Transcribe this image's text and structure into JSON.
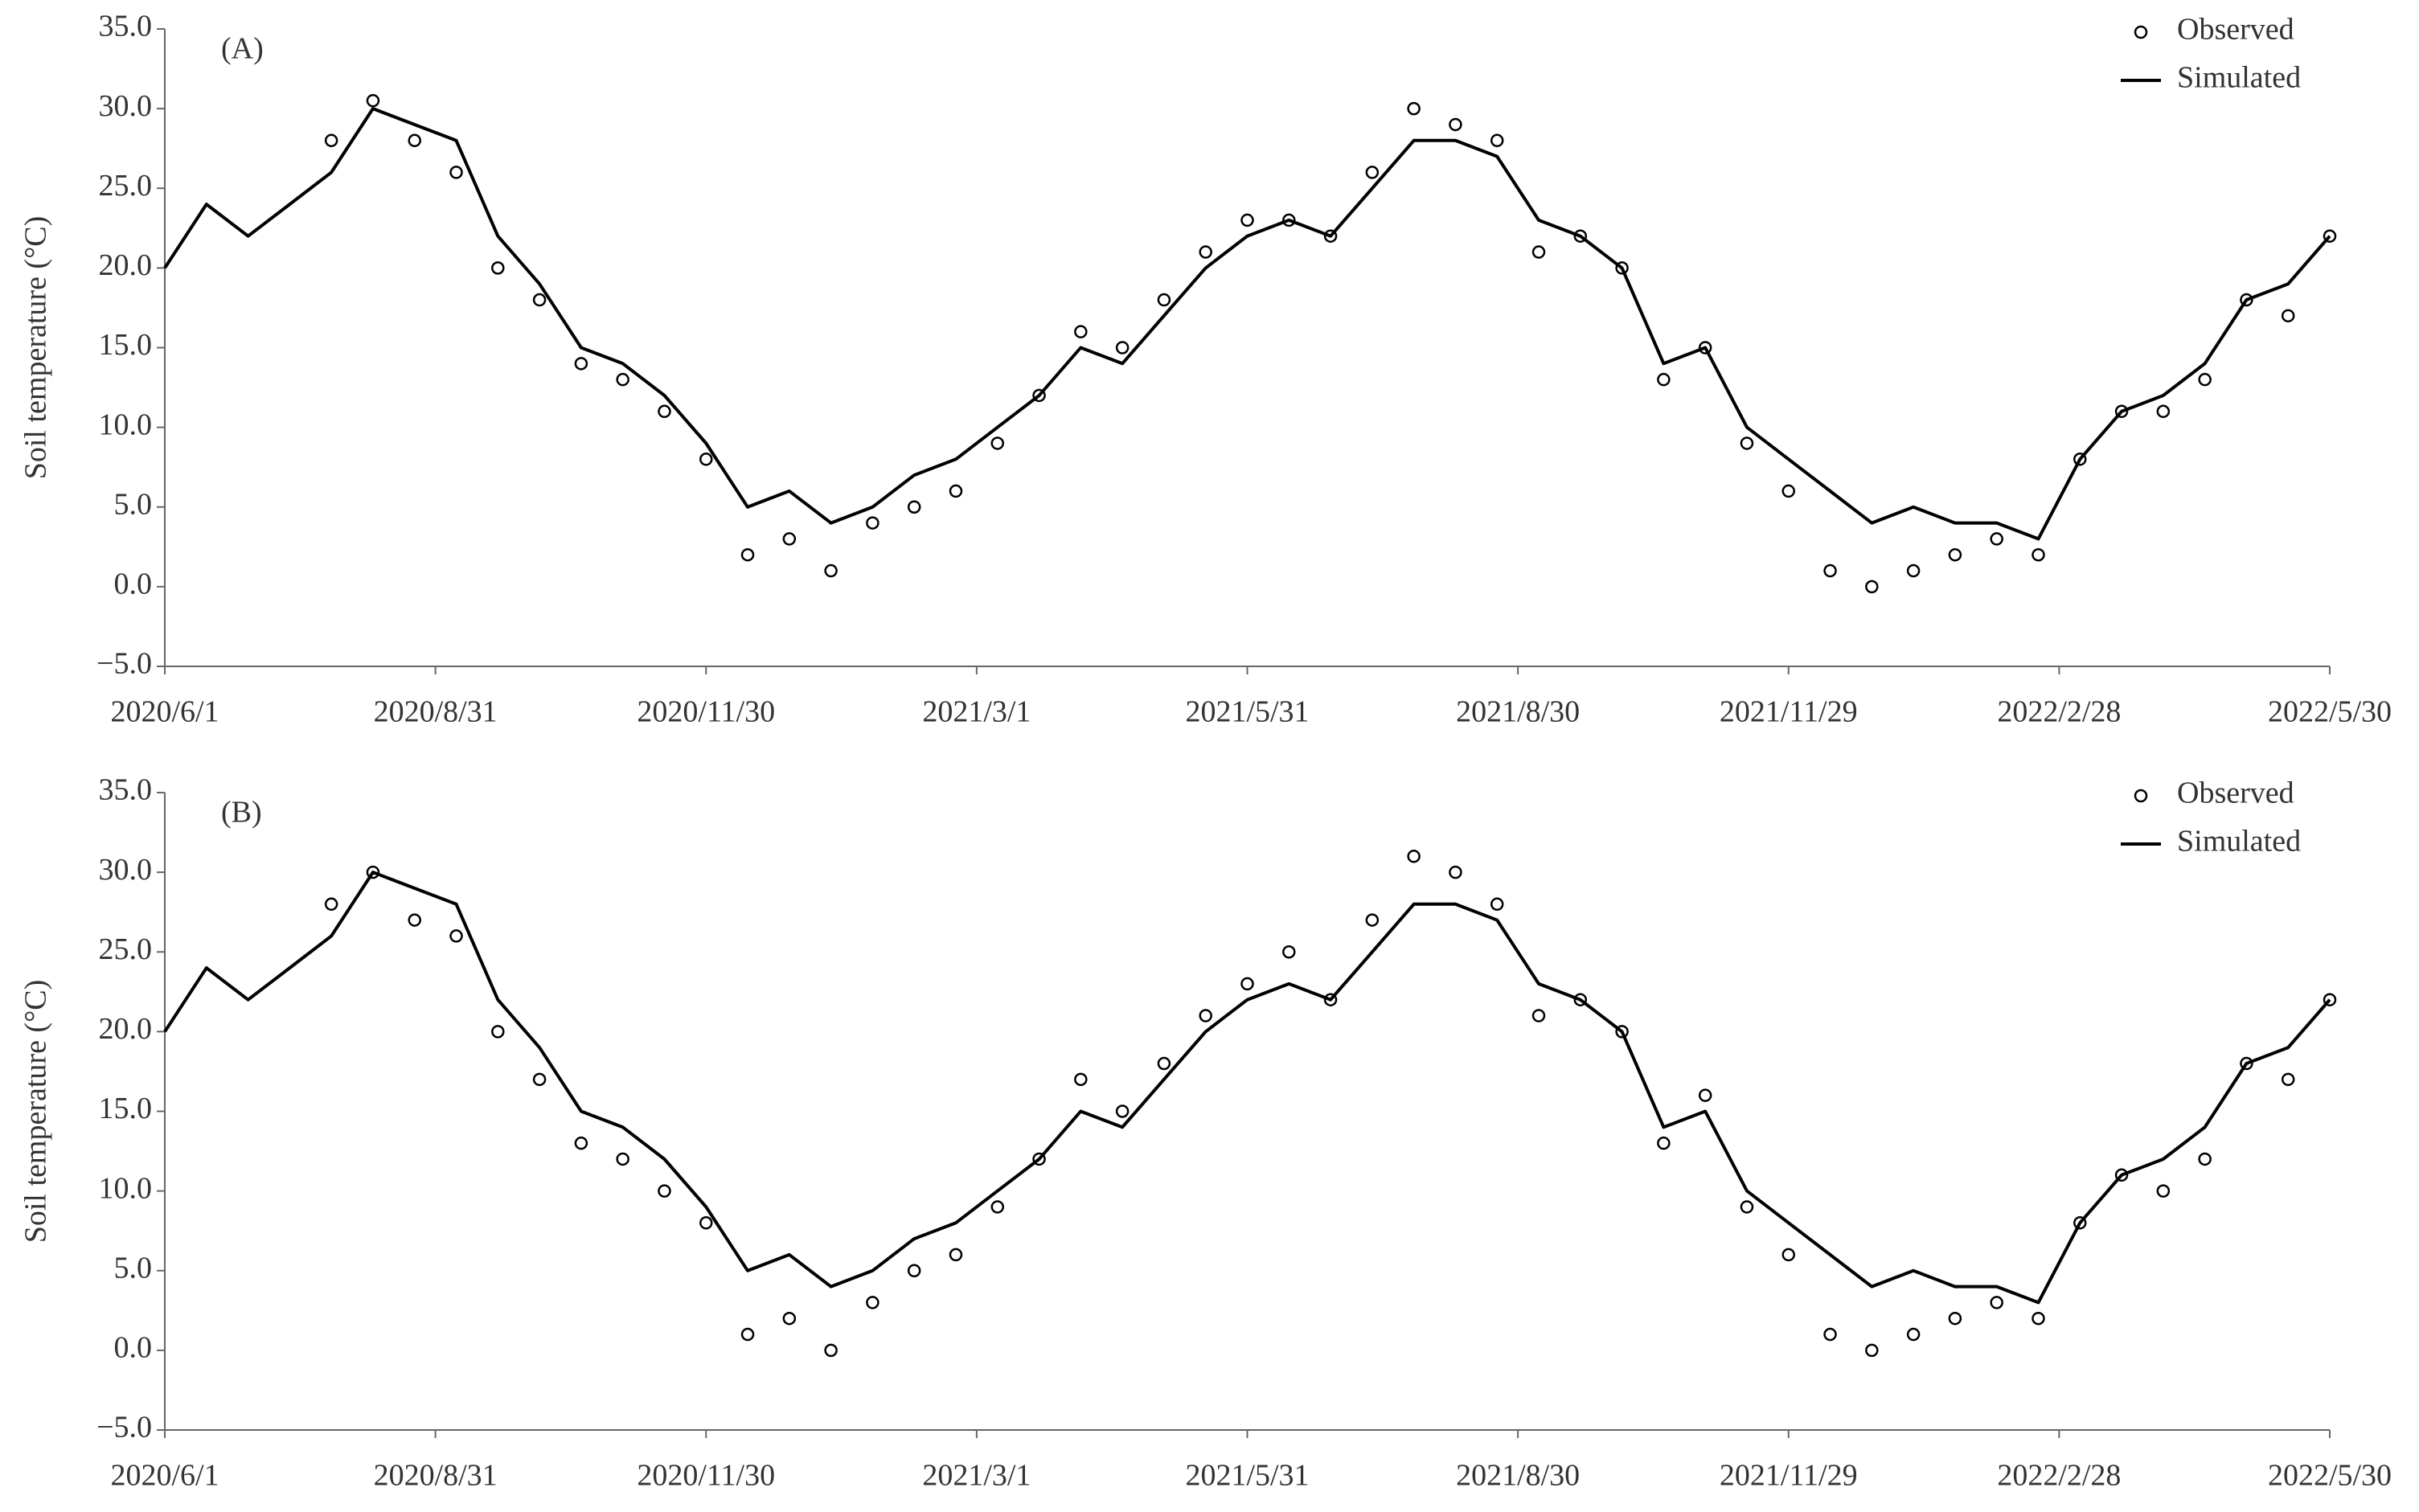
{
  "chart_data": [
    {
      "type": "line",
      "annotation": "(A)",
      "ylabel": "Soil temperature (°C)",
      "legend": "upper right",
      "x": [
        "2020-06-01",
        "2020-06-15",
        "2020-06-29",
        "2020-07-13",
        "2020-07-27",
        "2020-08-10",
        "2020-08-24",
        "2020-09-07",
        "2020-09-21",
        "2020-10-05",
        "2020-10-19",
        "2020-11-02",
        "2020-11-16",
        "2020-11-30",
        "2020-12-14",
        "2020-12-28",
        "2021-01-11",
        "2021-01-25",
        "2021-02-08",
        "2021-02-22",
        "2021-03-08",
        "2021-03-22",
        "2021-04-05",
        "2021-04-19",
        "2021-05-03",
        "2021-05-17",
        "2021-05-31",
        "2021-06-14",
        "2021-06-28",
        "2021-07-12",
        "2021-07-26",
        "2021-08-09",
        "2021-08-23",
        "2021-09-06",
        "2021-09-20",
        "2021-10-04",
        "2021-10-18",
        "2021-11-01",
        "2021-11-15",
        "2021-11-29",
        "2021-12-13",
        "2021-12-27",
        "2022-01-10",
        "2022-01-24",
        "2022-02-07",
        "2022-02-21",
        "2022-03-07",
        "2022-03-21",
        "2022-04-04",
        "2022-04-18",
        "2022-05-02",
        "2022-05-16",
        "2022-05-30"
      ],
      "series": [
        {
          "name": "Observed",
          "color": "#000000",
          "style": "marker",
          "values": [
            null,
            null,
            null,
            null,
            28,
            30.5,
            28,
            26,
            20,
            18,
            14,
            13,
            11,
            8,
            2,
            3,
            1,
            4,
            5,
            6,
            9,
            12,
            16,
            15,
            18,
            21,
            23,
            23,
            22,
            26,
            30,
            29,
            28,
            21,
            22,
            20,
            13,
            15,
            9,
            6,
            1,
            0,
            1,
            2,
            3,
            2,
            8,
            11,
            11,
            13,
            18,
            17,
            22
          ]
        },
        {
          "name": "Simulated",
          "color": "#000000",
          "style": "line",
          "values": [
            20,
            24,
            22,
            24,
            26,
            30,
            29,
            28,
            22,
            19,
            15,
            14,
            12,
            9,
            5,
            6,
            4,
            5,
            7,
            8,
            10,
            12,
            15,
            14,
            17,
            20,
            22,
            23,
            22,
            25,
            28,
            28,
            27,
            23,
            22,
            20,
            14,
            15,
            10,
            8,
            6,
            4,
            5,
            4,
            4,
            3,
            8,
            11,
            12,
            14,
            18,
            19,
            22
          ]
        }
      ],
      "xlim": [
        "2020-06-01",
        "2022-05-30"
      ],
      "xticks": [
        {
          "value": "2020-06-01",
          "label": "2020/6/1"
        },
        {
          "value": "2020-08-31",
          "label": "2020/8/31"
        },
        {
          "value": "2020-11-30",
          "label": "2020/11/30"
        },
        {
          "value": "2021-03-01",
          "label": "2021/3/1"
        },
        {
          "value": "2021-05-31",
          "label": "2021/5/31"
        },
        {
          "value": "2021-08-30",
          "label": "2021/8/30"
        },
        {
          "value": "2021-11-29",
          "label": "2021/11/29"
        },
        {
          "value": "2022-02-28",
          "label": "2022/2/28"
        },
        {
          "value": "2022-05-30",
          "label": "2022/5/30"
        }
      ],
      "ylim": [
        -5,
        35
      ],
      "yticks": [
        {
          "value": -5,
          "label": "−5.0"
        },
        {
          "value": 0,
          "label": "0.0"
        },
        {
          "value": 5,
          "label": "5.0"
        },
        {
          "value": 10,
          "label": "10.0"
        },
        {
          "value": 15,
          "label": "15.0"
        },
        {
          "value": 20,
          "label": "20.0"
        },
        {
          "value": 25,
          "label": "25.0"
        },
        {
          "value": 30,
          "label": "30.0"
        },
        {
          "value": 35,
          "label": "35.0"
        }
      ],
      "grid": false
    },
    {
      "type": "line",
      "annotation": "(B)",
      "ylabel": "Soil temperature (°C)",
      "legend": "upper right",
      "x": [
        "2020-06-01",
        "2020-06-15",
        "2020-06-29",
        "2020-07-13",
        "2020-07-27",
        "2020-08-10",
        "2020-08-24",
        "2020-09-07",
        "2020-09-21",
        "2020-10-05",
        "2020-10-19",
        "2020-11-02",
        "2020-11-16",
        "2020-11-30",
        "2020-12-14",
        "2020-12-28",
        "2021-01-11",
        "2021-01-25",
        "2021-02-08",
        "2021-02-22",
        "2021-03-08",
        "2021-03-22",
        "2021-04-05",
        "2021-04-19",
        "2021-05-03",
        "2021-05-17",
        "2021-05-31",
        "2021-06-14",
        "2021-06-28",
        "2021-07-12",
        "2021-07-26",
        "2021-08-09",
        "2021-08-23",
        "2021-09-06",
        "2021-09-20",
        "2021-10-04",
        "2021-10-18",
        "2021-11-01",
        "2021-11-15",
        "2021-11-29",
        "2021-12-13",
        "2021-12-27",
        "2022-01-10",
        "2022-01-24",
        "2022-02-07",
        "2022-02-21",
        "2022-03-07",
        "2022-03-21",
        "2022-04-04",
        "2022-04-18",
        "2022-05-02",
        "2022-05-16",
        "2022-05-30"
      ],
      "series": [
        {
          "name": "Observed",
          "color": "#000000",
          "style": "marker",
          "values": [
            null,
            null,
            null,
            null,
            28,
            30,
            27,
            26,
            20,
            17,
            13,
            12,
            10,
            8,
            1,
            2,
            0,
            3,
            5,
            6,
            9,
            12,
            17,
            15,
            18,
            21,
            23,
            25,
            22,
            27,
            31,
            30,
            28,
            21,
            22,
            20,
            13,
            16,
            9,
            6,
            1,
            0,
            1,
            2,
            3,
            2,
            8,
            11,
            10,
            12,
            18,
            17,
            22
          ]
        },
        {
          "name": "Simulated",
          "color": "#000000",
          "style": "line",
          "values": [
            20,
            24,
            22,
            24,
            26,
            30,
            29,
            28,
            22,
            19,
            15,
            14,
            12,
            9,
            5,
            6,
            4,
            5,
            7,
            8,
            10,
            12,
            15,
            14,
            17,
            20,
            22,
            23,
            22,
            25,
            28,
            28,
            27,
            23,
            22,
            20,
            14,
            15,
            10,
            8,
            6,
            4,
            5,
            4,
            4,
            3,
            8,
            11,
            12,
            14,
            18,
            19,
            22
          ]
        }
      ],
      "xlim": [
        "2020-06-01",
        "2022-05-30"
      ],
      "xticks": [
        {
          "value": "2020-06-01",
          "label": "2020/6/1"
        },
        {
          "value": "2020-08-31",
          "label": "2020/8/31"
        },
        {
          "value": "2020-11-30",
          "label": "2020/11/30"
        },
        {
          "value": "2021-03-01",
          "label": "2021/3/1"
        },
        {
          "value": "2021-05-31",
          "label": "2021/5/31"
        },
        {
          "value": "2021-08-30",
          "label": "2021/8/30"
        },
        {
          "value": "2021-11-29",
          "label": "2021/11/29"
        },
        {
          "value": "2022-02-28",
          "label": "2022/2/28"
        },
        {
          "value": "2022-05-30",
          "label": "2022/5/30"
        }
      ],
      "ylim": [
        -5,
        35
      ],
      "yticks": [
        {
          "value": -5,
          "label": "−5.0"
        },
        {
          "value": 0,
          "label": "0.0"
        },
        {
          "value": 5,
          "label": "5.0"
        },
        {
          "value": 10,
          "label": "10.0"
        },
        {
          "value": 15,
          "label": "15.0"
        },
        {
          "value": 20,
          "label": "20.0"
        },
        {
          "value": 25,
          "label": "25.0"
        },
        {
          "value": 30,
          "label": "30.0"
        },
        {
          "value": 35,
          "label": "35.0"
        }
      ],
      "grid": false
    }
  ]
}
